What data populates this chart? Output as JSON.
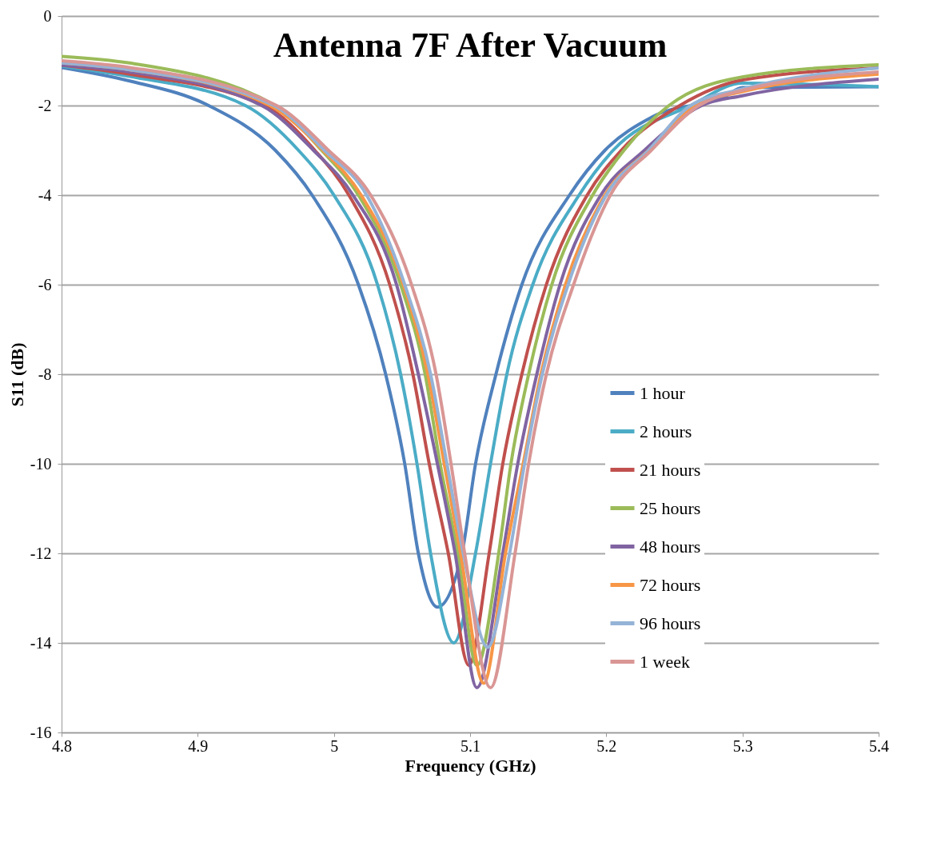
{
  "chart_data": {
    "type": "line",
    "title": "Antenna 7F After Vacuum",
    "xlabel": "Frequency (GHz)",
    "ylabel": "S11 (dB)",
    "xlim": [
      4.8,
      5.4
    ],
    "xticks": [
      4.8,
      4.9,
      5,
      5.1,
      5.2,
      5.3,
      5.4
    ],
    "ylim": [
      -16,
      0
    ],
    "yticks": [
      -16,
      -14,
      -12,
      -10,
      -8,
      -6,
      -4,
      -2,
      0
    ],
    "grid": "y",
    "legend": "bottom right",
    "line_style": "solid",
    "marker": "none",
    "series": [
      {
        "name": "1 hour",
        "color": "#4f81bd",
        "x": [
          4.8,
          4.85,
          4.908,
          4.957,
          4.984,
          5.018,
          5.038,
          5.052,
          5.062,
          5.076,
          5.094,
          5.104,
          5.119,
          5.138,
          5.173,
          5.199,
          5.234,
          5.287,
          5.3,
          5.4
        ],
        "values": [
          -1.15,
          -1.45,
          -2,
          -3,
          -4,
          -6,
          -8,
          -10,
          -12,
          -13.2,
          -12,
          -10,
          -8,
          -6,
          -4,
          -3,
          -2.25,
          -1.8,
          -1.6,
          -1.58
        ]
      },
      {
        "name": "2 hours",
        "color": "#4bacc6",
        "x": [
          4.8,
          4.85,
          4.935,
          4.974,
          5.0,
          5.032,
          5.049,
          5.061,
          5.071,
          5.088,
          5.104,
          5.115,
          5.127,
          5.146,
          5.18,
          5.205,
          5.262,
          5.3,
          5.4
        ],
        "values": [
          -1.12,
          -1.35,
          -2,
          -3,
          -4,
          -6,
          -8,
          -10,
          -12,
          -14,
          -12,
          -10,
          -8,
          -6,
          -4,
          -3,
          -2,
          -1.5,
          -1.58
        ]
      },
      {
        "name": "21 hours",
        "color": "#c0504d",
        "x": [
          4.8,
          4.85,
          4.949,
          4.986,
          5.011,
          5.041,
          5.058,
          5.07,
          5.084,
          5.099,
          5.114,
          5.124,
          5.138,
          5.156,
          5.186,
          5.211,
          5.254,
          5.3,
          5.4
        ],
        "values": [
          -1.1,
          -1.3,
          -2,
          -3,
          -4,
          -6,
          -8,
          -10,
          -12,
          -14.5,
          -12,
          -10,
          -8,
          -6,
          -4,
          -3,
          -2,
          -1.43,
          -1.16
        ]
      },
      {
        "name": "25 hours",
        "color": "#9bbb59",
        "x": [
          4.8,
          4.85,
          4.957,
          4.991,
          5.018,
          5.049,
          5.067,
          5.078,
          5.091,
          5.105,
          5.121,
          5.13,
          5.143,
          5.16,
          5.19,
          5.213,
          5.246,
          5.3,
          5.4
        ],
        "values": [
          -0.9,
          -1.05,
          -2,
          -3,
          -4,
          -6,
          -8,
          -10,
          -12,
          -14.5,
          -12,
          -10,
          -8,
          -6,
          -4,
          -3,
          -2,
          -1.36,
          -1.09
        ]
      },
      {
        "name": "48 hours",
        "color": "#8064a2",
        "x": [
          4.8,
          4.85,
          4.947,
          4.985,
          5.014,
          5.046,
          5.062,
          5.076,
          5.089,
          5.105,
          5.124,
          5.135,
          5.149,
          5.166,
          5.196,
          5.228,
          5.27,
          5.3,
          5.4
        ],
        "values": [
          -1.1,
          -1.25,
          -2,
          -3,
          -4,
          -6,
          -8,
          -10,
          -12,
          -15,
          -12,
          -10,
          -8,
          -6,
          -4,
          -3,
          -2,
          -1.78,
          -1.41
        ]
      },
      {
        "name": "72 hours",
        "color": "#f79646",
        "x": [
          4.8,
          4.85,
          4.953,
          4.992,
          5.02,
          5.051,
          5.069,
          5.081,
          5.093,
          5.11,
          5.126,
          5.139,
          5.152,
          5.17,
          5.199,
          5.231,
          5.265,
          5.3,
          5.4
        ],
        "values": [
          -1.05,
          -1.2,
          -2,
          -3,
          -4,
          -6,
          -8,
          -10,
          -12,
          -14.9,
          -12,
          -10,
          -8,
          -6,
          -4,
          -3,
          -2,
          -1.69,
          -1.3
        ]
      },
      {
        "name": "96 hours",
        "color": "#95b3d7",
        "x": [
          4.8,
          4.85,
          4.956,
          4.993,
          5.024,
          5.052,
          5.071,
          5.083,
          5.095,
          5.113,
          5.129,
          5.14,
          5.153,
          5.172,
          5.2,
          5.231,
          5.262,
          5.3,
          5.4
        ],
        "values": [
          -1.05,
          -1.2,
          -2,
          -3,
          -4,
          -6,
          -8,
          -10,
          -12,
          -14.1,
          -12,
          -10,
          -8,
          -6,
          -4,
          -3,
          -2,
          -1.63,
          -1.16
        ]
      },
      {
        "name": "1 week",
        "color": "#d99694",
        "x": [
          4.8,
          4.85,
          4.958,
          4.996,
          5.027,
          5.057,
          5.075,
          5.086,
          5.096,
          5.115,
          5.133,
          5.143,
          5.156,
          5.176,
          5.203,
          5.233,
          5.268,
          5.3,
          5.4
        ],
        "values": [
          -1.0,
          -1.15,
          -2,
          -3,
          -4,
          -6,
          -8,
          -10,
          -12,
          -15,
          -12,
          -10,
          -8,
          -6,
          -4,
          -3,
          -2,
          -1.66,
          -1.25
        ]
      }
    ]
  }
}
